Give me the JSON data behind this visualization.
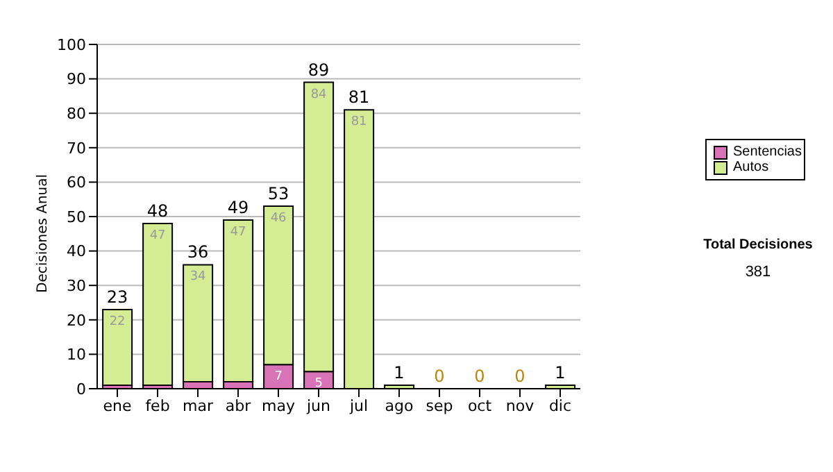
{
  "chart_data": {
    "type": "bar",
    "ylabel": "Decisiones Anual",
    "categories": [
      "ene",
      "feb",
      "mar",
      "abr",
      "may",
      "jun",
      "jul",
      "ago",
      "sep",
      "oct",
      "nov",
      "dic"
    ],
    "stacked": true,
    "series": [
      {
        "name": "Sentencias",
        "color": "#d873b8",
        "values": [
          1,
          1,
          2,
          2,
          7,
          5,
          0,
          0,
          0,
          0,
          0,
          0
        ],
        "value_labels": [
          null,
          null,
          null,
          null,
          "7",
          "5",
          null,
          null,
          null,
          null,
          null,
          null
        ]
      },
      {
        "name": "Autos",
        "color": "#d4ec94",
        "values": [
          22,
          47,
          34,
          47,
          46,
          84,
          81,
          1,
          0,
          0,
          0,
          1
        ],
        "value_labels": [
          "22",
          "47",
          "34",
          "47",
          "46",
          "84",
          "81",
          null,
          null,
          null,
          null,
          null
        ]
      }
    ],
    "totals": [
      "23",
      "48",
      "36",
      "49",
      "53",
      "89",
      "81",
      "1",
      "0",
      "0",
      "0",
      "1"
    ],
    "ylim": [
      0,
      100
    ],
    "yticks": [
      0,
      10,
      20,
      30,
      40,
      50,
      60,
      70,
      80,
      90,
      100
    ],
    "grid": "y",
    "legend": "right",
    "annotations": [
      "Total Decisiones",
      "381"
    ]
  }
}
